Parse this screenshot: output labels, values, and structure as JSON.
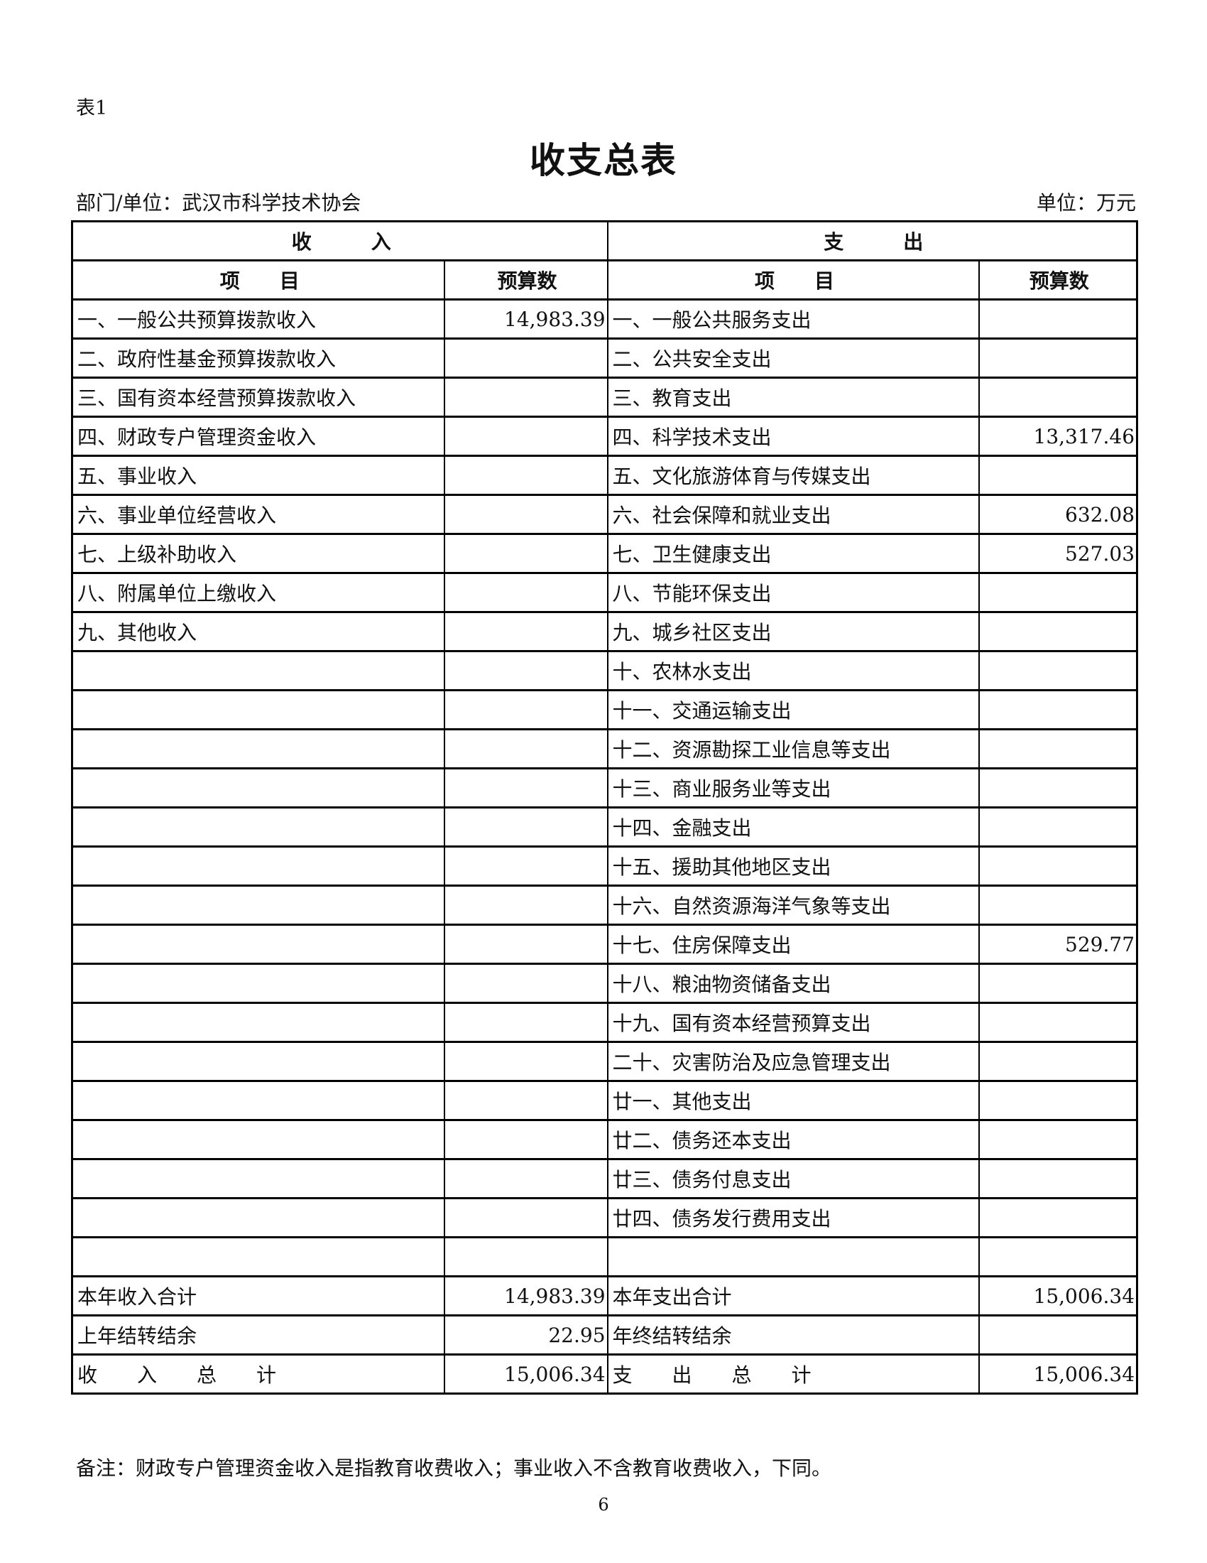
{
  "tab_label": "表1",
  "title": "收支总表",
  "department": "部门/单位：武汉市科学技术协会",
  "unit": "单位：万元",
  "header": {
    "income": "收　　　入",
    "expense": "支　　　出",
    "item": "项　　目",
    "amount": "预算数"
  },
  "income_rows": [
    {
      "item": "一、一般公共预算拨款收入",
      "amount": "14,983.39"
    },
    {
      "item": "二、政府性基金预算拨款收入",
      "amount": ""
    },
    {
      "item": "三、国有资本经营预算拨款收入",
      "amount": ""
    },
    {
      "item": "四、财政专户管理资金收入",
      "amount": ""
    },
    {
      "item": "五、事业收入",
      "amount": ""
    },
    {
      "item": "六、事业单位经营收入",
      "amount": ""
    },
    {
      "item": "七、上级补助收入",
      "amount": ""
    },
    {
      "item": "八、附属单位上缴收入",
      "amount": ""
    },
    {
      "item": "九、其他收入",
      "amount": ""
    }
  ],
  "expense_rows": [
    {
      "item": "一、一般公共服务支出",
      "amount": ""
    },
    {
      "item": "二、公共安全支出",
      "amount": ""
    },
    {
      "item": "三、教育支出",
      "amount": ""
    },
    {
      "item": "四、科学技术支出",
      "amount": "13,317.46"
    },
    {
      "item": "五、文化旅游体育与传媒支出",
      "amount": ""
    },
    {
      "item": "六、社会保障和就业支出",
      "amount": "632.08"
    },
    {
      "item": "七、卫生健康支出",
      "amount": "527.03"
    },
    {
      "item": "八、节能环保支出",
      "amount": ""
    },
    {
      "item": "九、城乡社区支出",
      "amount": ""
    },
    {
      "item": "十、农林水支出",
      "amount": ""
    },
    {
      "item": "十一、交通运输支出",
      "amount": ""
    },
    {
      "item": "十二、资源勘探工业信息等支出",
      "amount": ""
    },
    {
      "item": "十三、商业服务业等支出",
      "amount": ""
    },
    {
      "item": "十四、金融支出",
      "amount": ""
    },
    {
      "item": "十五、援助其他地区支出",
      "amount": ""
    },
    {
      "item": "十六、自然资源海洋气象等支出",
      "amount": ""
    },
    {
      "item": "十七、住房保障支出",
      "amount": "529.77"
    },
    {
      "item": "十八、粮油物资储备支出",
      "amount": ""
    },
    {
      "item": "十九、国有资本经营预算支出",
      "amount": ""
    },
    {
      "item": "二十、灾害防治及应急管理支出",
      "amount": ""
    },
    {
      "item": "廿一、其他支出",
      "amount": ""
    },
    {
      "item": "廿二、债务还本支出",
      "amount": ""
    },
    {
      "item": "廿三、债务付息支出",
      "amount": ""
    },
    {
      "item": "廿四、债务发行费用支出",
      "amount": ""
    }
  ],
  "summary_rows": [
    {
      "income_item": "本年收入合计",
      "income_amount": "14,983.39",
      "expense_item": "本年支出合计",
      "expense_amount": "15,006.34"
    },
    {
      "income_item": "上年结转结余",
      "income_amount": "22.95",
      "expense_item": "年终结转结余",
      "expense_amount": ""
    },
    {
      "income_item": "收　　入　　总　　计",
      "income_amount": "15,006.34",
      "expense_item": "支　　出　　总　　计",
      "expense_amount": "15,006.34"
    }
  ],
  "note": "备注：财政专户管理资金收入是指教育收费收入；事业收入不含教育收费收入，下同。",
  "page_number": "6"
}
